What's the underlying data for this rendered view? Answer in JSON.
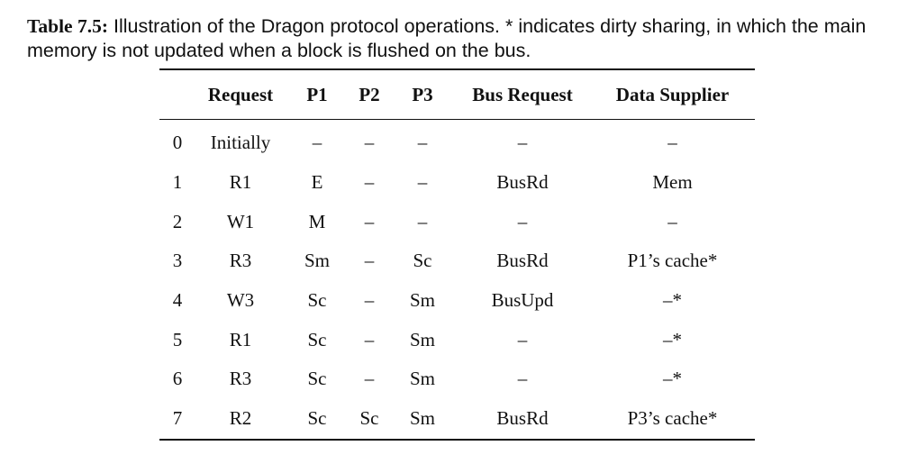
{
  "caption": {
    "label": "Table 7.5:",
    "text": " Illustration of the Dragon protocol operations. * indicates dirty sharing, in which the main memory is not updated when a block is flushed on the bus."
  },
  "table": {
    "headers": [
      "",
      "Request",
      "P1",
      "P2",
      "P3",
      "Bus Request",
      "Data Supplier"
    ],
    "rows": [
      [
        "0",
        "Initially",
        "–",
        "–",
        "–",
        "–",
        "–"
      ],
      [
        "1",
        "R1",
        "E",
        "–",
        "–",
        "BusRd",
        "Mem"
      ],
      [
        "2",
        "W1",
        "M",
        "–",
        "–",
        "–",
        "–"
      ],
      [
        "3",
        "R3",
        "Sm",
        "–",
        "Sc",
        "BusRd",
        "P1’s cache*"
      ],
      [
        "4",
        "W3",
        "Sc",
        "–",
        "Sm",
        "BusUpd",
        "–*"
      ],
      [
        "5",
        "R1",
        "Sc",
        "–",
        "Sm",
        "–",
        "–*"
      ],
      [
        "6",
        "R3",
        "Sc",
        "–",
        "Sm",
        "–",
        "–*"
      ],
      [
        "7",
        "R2",
        "Sc",
        "Sc",
        "Sm",
        "BusRd",
        "P3’s cache*"
      ]
    ]
  }
}
